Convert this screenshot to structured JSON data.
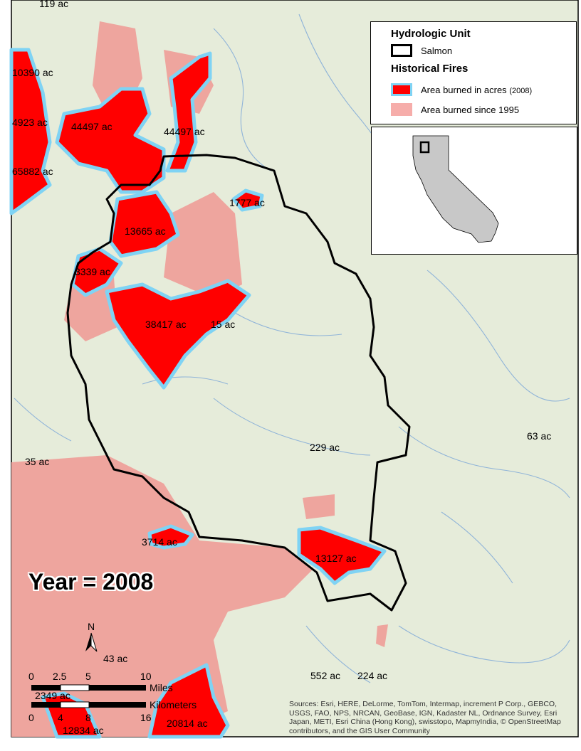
{
  "map": {
    "year_label": "Year = 2008",
    "colors": {
      "background": "#e6ecda",
      "rivers": "#7aa6d8",
      "burned_2008": "#ff0000",
      "burned_2008_outline": "#7fd3f4",
      "burned_since_1995": "#eea59e",
      "hydrologic_unit_outline": "#000000",
      "inset_state": "#c8c8c8"
    },
    "fire_labels": [
      "119 ac",
      "10390 ac",
      "4923 ac",
      "44497 ac",
      "44497 ac",
      "65882 ac",
      "1777 ac",
      "13665 ac",
      "3339 ac",
      "38417 ac",
      "15 ac",
      "229 ac",
      "63 ac",
      "35 ac",
      "3714 ac",
      "13127 ac",
      "43 ac",
      "552 ac",
      "224 ac",
      "2349 ac",
      "12834 ac",
      "20814 ac"
    ]
  },
  "legend": {
    "hydro_title": "Hydrologic Unit",
    "hydro_item": "Salmon",
    "fires_title": "Historical Fires",
    "fires_item_2008": "Area burned in acres",
    "fires_item_2008_year": "(2008)",
    "fires_item_since": "Area burned since 1995"
  },
  "scale_bar": {
    "north_label": "N",
    "miles_ticks": [
      "0",
      "2.5",
      "5",
      "10"
    ],
    "miles_unit": "Miles",
    "km_ticks": [
      "0",
      "4",
      "8",
      "16"
    ],
    "km_unit": "Kilometers"
  },
  "attribution": "Sources: Esri, HERE, DeLorme, TomTom, Intermap, increment P Corp., GEBCO, USGS, FAO, NPS, NRCAN, GeoBase, IGN, Kadaster NL, Ordnance Survey, Esri Japan, METI, Esri China (Hong Kong), swisstopo, MapmyIndia, © OpenStreetMap contributors, and the GIS User Community"
}
